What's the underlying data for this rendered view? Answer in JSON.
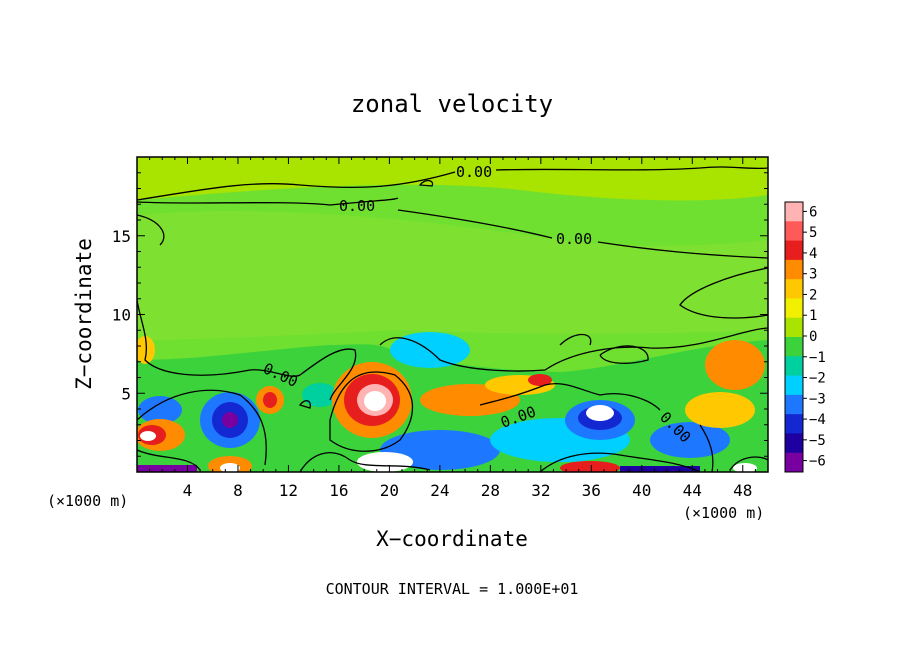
{
  "chart_data": {
    "type": "heatmap",
    "title": "zonal velocity",
    "xlabel": "X−coordinate",
    "ylabel": "Z−coordinate",
    "x_unit_left": "(×1000 m)",
    "x_unit_right": "(×1000 m)",
    "footer": "CONTOUR INTERVAL = 1.000E+01",
    "xlim": [
      0,
      50
    ],
    "ylim": [
      0,
      20
    ],
    "x_ticks": [
      "4",
      "8",
      "12",
      "16",
      "20",
      "24",
      "28",
      "32",
      "36",
      "40",
      "44",
      "48"
    ],
    "y_ticks": [
      "5",
      "10",
      "15"
    ],
    "contour_labels": [
      "0.00",
      "0.00",
      "0.00",
      "0.00",
      "0.00",
      "0.00"
    ],
    "colorbar": {
      "levels": [
        "6",
        "5",
        "4",
        "3",
        "2",
        "1",
        "0",
        "−1",
        "−2",
        "−3",
        "−4",
        "−5",
        "−6"
      ],
      "colors": [
        "#ffb3b3",
        "#ff5a5a",
        "#e61e1e",
        "#ff8c00",
        "#ffc800",
        "#f0f000",
        "#a8e400",
        "#3cd23c",
        "#00d0a0",
        "#00d0ff",
        "#1e78ff",
        "#1428d2",
        "#1e00a0",
        "#7800a0"
      ]
    }
  }
}
